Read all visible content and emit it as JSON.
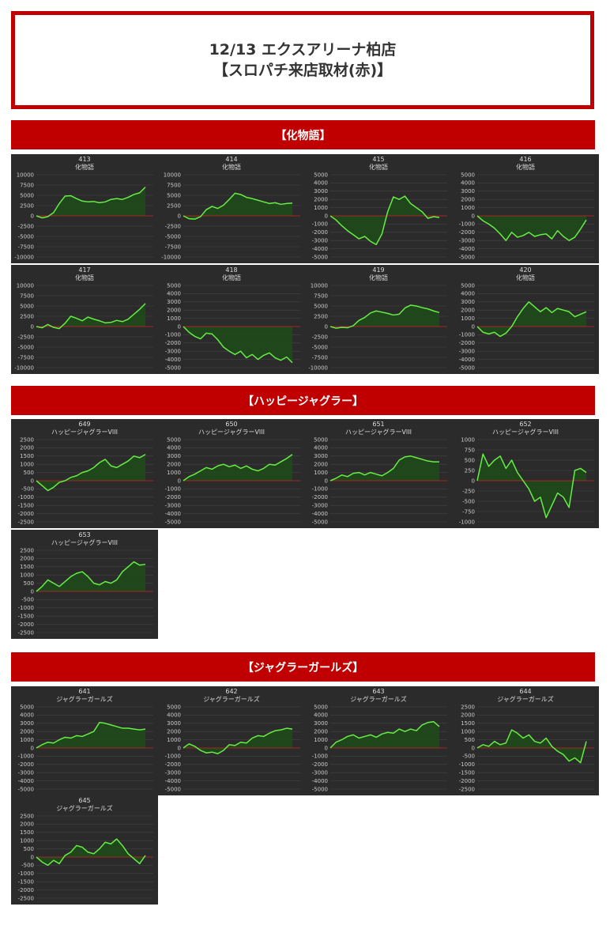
{
  "header": {
    "title_line1": "12/13 エクスアリーナ柏店",
    "title_line2": "【スロパチ来店取材(赤)】"
  },
  "colors": {
    "accent": "#c00000",
    "panel_bg": "#2b2b2b",
    "line": "#66ee44",
    "fill": "#1f4a1a",
    "zero_line": "#cc2222"
  },
  "sections": [
    {
      "title": "【化物語】"
    },
    {
      "title": "【ハッピージャグラー】"
    },
    {
      "title": "【ジャグラーガールズ】"
    }
  ],
  "chart_data": [
    {
      "type": "area",
      "section": 0,
      "number": "413",
      "title": "化物語",
      "ylim": [
        -10000,
        10000
      ],
      "yticks": [
        10000,
        7500,
        5000,
        2500,
        0,
        -2500,
        -5000,
        -7500,
        -10000
      ],
      "values": [
        0,
        -500,
        -200,
        800,
        3000,
        4800,
        4900,
        4200,
        3600,
        3400,
        3500,
        3200,
        3400,
        4000,
        4200,
        4000,
        4500,
        5200,
        5600,
        7000
      ]
    },
    {
      "type": "area",
      "section": 0,
      "number": "414",
      "title": "化物語",
      "ylim": [
        -10000,
        10000
      ],
      "yticks": [
        10000,
        7500,
        5000,
        2500,
        0,
        -2500,
        -5000,
        -7500,
        -10000
      ],
      "values": [
        0,
        -700,
        -800,
        -200,
        1500,
        2300,
        1800,
        2600,
        4000,
        5500,
        5200,
        4500,
        4200,
        3800,
        3400,
        3000,
        3200,
        2800,
        3000,
        3100
      ]
    },
    {
      "type": "area",
      "section": 0,
      "number": "415",
      "title": "化物語",
      "ylim": [
        -5000,
        5000
      ],
      "yticks": [
        5000,
        4000,
        3000,
        2000,
        1000,
        0,
        -1000,
        -2000,
        -3000,
        -4000,
        -5000
      ],
      "values": [
        0,
        -500,
        -1200,
        -1800,
        -2300,
        -2800,
        -2500,
        -3100,
        -3500,
        -2200,
        500,
        2300,
        2000,
        2400,
        1500,
        1000,
        500,
        -300,
        -100,
        -200
      ]
    },
    {
      "type": "area",
      "section": 0,
      "number": "416",
      "title": "化物語",
      "ylim": [
        -5000,
        5000
      ],
      "yticks": [
        5000,
        4000,
        3000,
        2000,
        1000,
        0,
        -1000,
        -2000,
        -3000,
        -4000,
        -5000
      ],
      "values": [
        0,
        -600,
        -1000,
        -1500,
        -2200,
        -3000,
        -2000,
        -2600,
        -2400,
        -2000,
        -2500,
        -2300,
        -2200,
        -2800,
        -1800,
        -2500,
        -3000,
        -2600,
        -1600,
        -500
      ]
    },
    {
      "type": "area",
      "section": 0,
      "number": "417",
      "title": "化物語",
      "ylim": [
        -10000,
        10000
      ],
      "yticks": [
        10000,
        7500,
        5000,
        2500,
        0,
        -2500,
        -5000,
        -7500,
        -10000
      ],
      "values": [
        0,
        -300,
        500,
        -200,
        -500,
        800,
        2500,
        2000,
        1400,
        2300,
        1800,
        1400,
        900,
        1000,
        1500,
        1200,
        1800,
        3000,
        4200,
        5600
      ]
    },
    {
      "type": "area",
      "section": 0,
      "number": "418",
      "title": "化物語",
      "ylim": [
        -5000,
        5000
      ],
      "yticks": [
        5000,
        4000,
        3000,
        2000,
        1000,
        0,
        -1000,
        -2000,
        -3000,
        -4000,
        -5000
      ],
      "values": [
        0,
        -700,
        -1200,
        -1500,
        -800,
        -900,
        -1600,
        -2500,
        -3000,
        -3400,
        -3000,
        -3800,
        -3400,
        -4000,
        -3500,
        -3200,
        -3800,
        -4100,
        -3700,
        -4400
      ]
    },
    {
      "type": "area",
      "section": 0,
      "number": "419",
      "title": "化物語",
      "ylim": [
        -10000,
        10000
      ],
      "yticks": [
        10000,
        7500,
        5000,
        2500,
        0,
        -2500,
        -5000,
        -7500,
        -10000
      ],
      "values": [
        0,
        -400,
        -200,
        -300,
        200,
        1500,
        2200,
        3300,
        3800,
        3500,
        3200,
        2800,
        3000,
        4500,
        5200,
        5000,
        4600,
        4300,
        3800,
        3400
      ]
    },
    {
      "type": "area",
      "section": 0,
      "number": "420",
      "title": "化物語",
      "ylim": [
        -5000,
        5000
      ],
      "yticks": [
        5000,
        4000,
        3000,
        2000,
        1000,
        0,
        -1000,
        -2000,
        -3000,
        -4000,
        -5000
      ],
      "values": [
        0,
        -700,
        -900,
        -700,
        -1200,
        -800,
        0,
        1200,
        2200,
        3000,
        2400,
        1800,
        2300,
        1700,
        2200,
        2000,
        1800,
        1200,
        1500,
        1800
      ]
    },
    {
      "type": "area",
      "section": 1,
      "number": "649",
      "title": "ハッピージャグラーVIII",
      "ylim": [
        -2500,
        2500
      ],
      "yticks": [
        2500,
        2000,
        1500,
        1000,
        500,
        0,
        -500,
        -1000,
        -1500,
        -2000,
        -2500
      ],
      "values": [
        0,
        -300,
        -600,
        -400,
        -100,
        0,
        200,
        300,
        500,
        600,
        800,
        1100,
        1300,
        900,
        800,
        1000,
        1200,
        1500,
        1400,
        1600
      ]
    },
    {
      "type": "area",
      "section": 1,
      "number": "650",
      "title": "ハッピージャグラーVIII",
      "ylim": [
        -5000,
        5000
      ],
      "yticks": [
        5000,
        4000,
        3000,
        2000,
        1000,
        0,
        -1000,
        -2000,
        -3000,
        -4000,
        -5000
      ],
      "values": [
        0,
        500,
        800,
        1200,
        1600,
        1400,
        1800,
        2000,
        1700,
        1900,
        1500,
        1800,
        1400,
        1200,
        1500,
        2000,
        1900,
        2300,
        2700,
        3200
      ]
    },
    {
      "type": "area",
      "section": 1,
      "number": "651",
      "title": "ハッピージャグラーVIII",
      "ylim": [
        -5000,
        5000
      ],
      "yticks": [
        5000,
        4000,
        3000,
        2000,
        1000,
        0,
        -1000,
        -2000,
        -3000,
        -4000,
        -5000
      ],
      "values": [
        0,
        300,
        700,
        500,
        900,
        1000,
        700,
        1000,
        800,
        600,
        1000,
        1500,
        2500,
        2900,
        3000,
        2800,
        2600,
        2400,
        2300,
        2300
      ]
    },
    {
      "type": "area",
      "section": 1,
      "number": "652",
      "title": "ハッピージャグラーVIII",
      "ylim": [
        -1000,
        1000
      ],
      "yticks": [
        1000,
        750,
        500,
        250,
        0,
        -250,
        -500,
        -750,
        -1000
      ],
      "values": [
        0,
        650,
        350,
        500,
        600,
        300,
        500,
        200,
        0,
        -200,
        -500,
        -400,
        -900,
        -600,
        -300,
        -400,
        -650,
        250,
        300,
        200
      ]
    },
    {
      "type": "area",
      "section": 1,
      "number": "653",
      "title": "ハッピージャグラーVIII",
      "ylim": [
        -2500,
        2500
      ],
      "yticks": [
        2500,
        2000,
        1500,
        1000,
        500,
        0,
        -500,
        -1000,
        -1500,
        -2000,
        -2500
      ],
      "values": [
        0,
        300,
        700,
        500,
        300,
        600,
        900,
        1100,
        1200,
        900,
        500,
        400,
        600,
        500,
        700,
        1200,
        1500,
        1800,
        1600,
        1650
      ]
    },
    {
      "type": "area",
      "section": 2,
      "number": "641",
      "title": "ジャグラーガールズ",
      "ylim": [
        -5000,
        5000
      ],
      "yticks": [
        5000,
        4000,
        3000,
        2000,
        1000,
        0,
        -1000,
        -2000,
        -3000,
        -4000,
        -5000
      ],
      "values": [
        0,
        400,
        700,
        600,
        1000,
        1300,
        1200,
        1500,
        1400,
        1700,
        2000,
        3100,
        3000,
        2800,
        2600,
        2400,
        2400,
        2300,
        2200,
        2300
      ]
    },
    {
      "type": "area",
      "section": 2,
      "number": "642",
      "title": "ジャグラーガールズ",
      "ylim": [
        -5000,
        5000
      ],
      "yticks": [
        5000,
        4000,
        3000,
        2000,
        1000,
        0,
        -1000,
        -2000,
        -3000,
        -4000,
        -5000
      ],
      "values": [
        0,
        500,
        200,
        -300,
        -600,
        -500,
        -700,
        -300,
        400,
        300,
        700,
        600,
        1200,
        1500,
        1400,
        1800,
        2100,
        2200,
        2400,
        2300
      ]
    },
    {
      "type": "area",
      "section": 2,
      "number": "643",
      "title": "ジャグラーガールズ",
      "ylim": [
        -5000,
        5000
      ],
      "yticks": [
        5000,
        4000,
        3000,
        2000,
        1000,
        0,
        -1000,
        -2000,
        -3000,
        -4000,
        -5000
      ],
      "values": [
        0,
        700,
        1000,
        1400,
        1600,
        1200,
        1400,
        1600,
        1300,
        1700,
        1900,
        1800,
        2300,
        2000,
        2300,
        2100,
        2800,
        3100,
        3200,
        2600
      ]
    },
    {
      "type": "area",
      "section": 2,
      "number": "644",
      "title": "ジャグラーガールズ",
      "ylim": [
        -2500,
        2500
      ],
      "yticks": [
        2500,
        2000,
        1500,
        1000,
        500,
        0,
        -500,
        -1000,
        -1500,
        -2000,
        -2500
      ],
      "values": [
        0,
        200,
        100,
        400,
        200,
        300,
        1100,
        900,
        600,
        800,
        400,
        300,
        600,
        100,
        -200,
        -400,
        -800,
        -600,
        -900,
        400
      ]
    },
    {
      "type": "area",
      "section": 2,
      "number": "645",
      "title": "ジャグラーガールズ",
      "ylim": [
        -2500,
        2500
      ],
      "yticks": [
        2500,
        2000,
        1500,
        1000,
        500,
        0,
        -500,
        -1000,
        -1500,
        -2000,
        -2500
      ],
      "values": [
        0,
        -300,
        -500,
        -200,
        -400,
        100,
        300,
        700,
        600,
        300,
        200,
        500,
        900,
        800,
        1100,
        700,
        200,
        -100,
        -400,
        100
      ]
    }
  ]
}
